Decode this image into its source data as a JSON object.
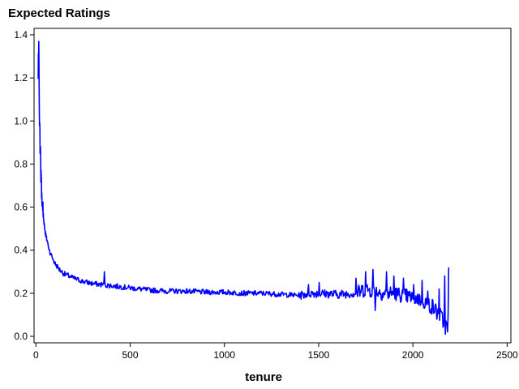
{
  "chart_data": {
    "type": "line",
    "title": "Expected Ratings",
    "xlabel": "tenure",
    "ylabel": "",
    "xlim": [
      -10,
      2520
    ],
    "ylim": [
      -0.03,
      1.43
    ],
    "xticks": [
      0,
      500,
      1000,
      1500,
      2000,
      2500
    ],
    "yticks": [
      0.0,
      0.2,
      0.4,
      0.6,
      0.8,
      1.0,
      1.2,
      1.4
    ],
    "xtick_labels": [
      "0",
      "500",
      "1000",
      "1500",
      "2000",
      "2500"
    ],
    "ytick_labels": [
      "0.0",
      "0.2",
      "0.4",
      "0.6",
      "0.8",
      "1.0",
      "1.2",
      "1.4"
    ],
    "grid": false,
    "series": [
      {
        "color": "#0000ff",
        "x": [
          12,
          15,
          18,
          20,
          25,
          30,
          40,
          50,
          60,
          75,
          100,
          125,
          150,
          200,
          250,
          300,
          350,
          400,
          500,
          600,
          700,
          800,
          900,
          1000,
          1100,
          1200,
          1300,
          1400,
          1450,
          1500,
          1600,
          1700,
          1750,
          1800,
          1850,
          1900,
          1950,
          2000,
          2050,
          2100,
          2150,
          2170,
          2180,
          2190
        ],
        "y": [
          1.22,
          1.32,
          1.1,
          0.97,
          0.8,
          0.66,
          0.55,
          0.48,
          0.44,
          0.39,
          0.34,
          0.31,
          0.29,
          0.27,
          0.255,
          0.245,
          0.24,
          0.235,
          0.225,
          0.215,
          0.21,
          0.21,
          0.205,
          0.205,
          0.2,
          0.2,
          0.195,
          0.19,
          0.2,
          0.2,
          0.195,
          0.2,
          0.22,
          0.21,
          0.2,
          0.2,
          0.19,
          0.18,
          0.17,
          0.14,
          0.09,
          0.05,
          0.04,
          0.1
        ],
        "spikes": [
          [
            365,
            0.3
          ],
          [
            1447,
            0.24
          ],
          [
            1505,
            0.25
          ],
          [
            1700,
            0.27
          ],
          [
            1750,
            0.3
          ],
          [
            1790,
            0.31
          ],
          [
            1800,
            0.12
          ],
          [
            1860,
            0.3
          ],
          [
            1900,
            0.28
          ],
          [
            1950,
            0.27
          ],
          [
            2005,
            0.24
          ],
          [
            2050,
            0.26
          ],
          [
            2080,
            0.21
          ],
          [
            2140,
            0.22
          ],
          [
            2170,
            0.28
          ],
          [
            2185,
            0.02
          ],
          [
            2192,
            0.32
          ]
        ]
      }
    ]
  }
}
